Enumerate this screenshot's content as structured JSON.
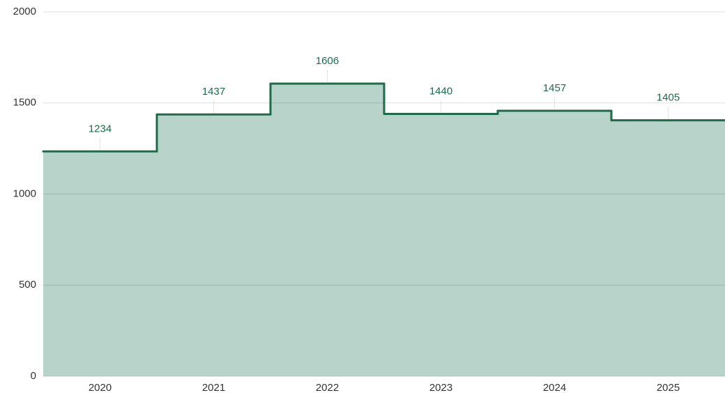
{
  "chart_data": {
    "type": "steparea",
    "categories": [
      "2020",
      "2021",
      "2022",
      "2023",
      "2024",
      "2025"
    ],
    "values": [
      1234,
      1437,
      1606,
      1440,
      1457,
      1405
    ],
    "color": "#1d6b4b",
    "fill": "#b8d3ca",
    "ylim": [
      0,
      2000
    ],
    "yticks": [
      0,
      500,
      1000,
      1500,
      2000
    ],
    "grid": true,
    "data_labels": true
  }
}
